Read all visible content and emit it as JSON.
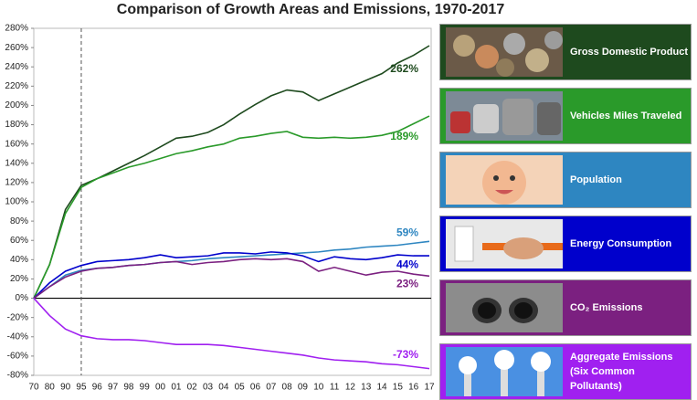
{
  "chart_data": {
    "type": "line",
    "title": "Comparison of Growth Areas and Emissions, 1970-2017",
    "categories": [
      "70",
      "80",
      "90",
      "95",
      "96",
      "97",
      "98",
      "99",
      "00",
      "01",
      "02",
      "03",
      "04",
      "05",
      "06",
      "07",
      "08",
      "09",
      "10",
      "11",
      "12",
      "13",
      "14",
      "15",
      "16",
      "17"
    ],
    "reference_line": "95",
    "ylim": [
      -80,
      280
    ],
    "yticks": [
      {
        "value": -80,
        "label": "-80%"
      },
      {
        "value": -60,
        "label": "-60%"
      },
      {
        "value": -40,
        "label": "-40%"
      },
      {
        "value": -20,
        "label": "-20%"
      },
      {
        "value": 0,
        "label": "0%"
      },
      {
        "value": 20,
        "label": "20%"
      },
      {
        "value": 40,
        "label": "40%"
      },
      {
        "value": 60,
        "label": "60%"
      },
      {
        "value": 80,
        "label": "80%"
      },
      {
        "value": 100,
        "label": "100%"
      },
      {
        "value": 120,
        "label": "120%"
      },
      {
        "value": 140,
        "label": "140%"
      },
      {
        "value": 160,
        "label": "160%"
      },
      {
        "value": 180,
        "label": "180%"
      },
      {
        "value": 200,
        "label": "200%"
      },
      {
        "value": 220,
        "label": "220%"
      },
      {
        "value": 240,
        "label": "240%"
      },
      {
        "value": 260,
        "label": "260%"
      },
      {
        "value": 280,
        "label": "280%"
      }
    ],
    "series": [
      {
        "name": "Gross Domestic Product",
        "color": "#1e4a1e",
        "end_label": "262%",
        "values": [
          0,
          35,
          92,
          117,
          124,
          132,
          140,
          148,
          157,
          166,
          168,
          172,
          180,
          191,
          201,
          210,
          216,
          214,
          205,
          212,
          219,
          226,
          233,
          244,
          252,
          262
        ]
      },
      {
        "name": "Vehicles Miles Traveled",
        "color": "#2a9a2a",
        "end_label": "189%",
        "values": [
          0,
          35,
          88,
          115,
          124,
          130,
          136,
          140,
          145,
          150,
          153,
          157,
          160,
          166,
          168,
          171,
          173,
          167,
          166,
          167,
          166,
          167,
          169,
          173,
          181,
          189
        ]
      },
      {
        "name": "Population",
        "color": "#2e86c1",
        "end_label": "59%",
        "values": [
          0,
          12,
          24,
          29,
          31,
          32,
          34,
          35,
          37,
          38,
          39,
          41,
          42,
          43,
          44,
          45,
          46,
          47,
          48,
          50,
          51,
          53,
          54,
          55,
          57,
          59
        ]
      },
      {
        "name": "Energy Consumption",
        "color": "#0000cc",
        "end_label": "44%",
        "values": [
          0,
          16,
          28,
          34,
          38,
          39,
          40,
          42,
          45,
          42,
          43,
          44,
          47,
          47,
          46,
          48,
          47,
          44,
          38,
          43,
          41,
          40,
          42,
          45,
          44,
          44
        ]
      },
      {
        "name": "CO₂ Emissions",
        "color": "#7b2080",
        "end_label": "23%",
        "values": [
          0,
          12,
          22,
          28,
          31,
          32,
          34,
          35,
          37,
          38,
          35,
          37,
          38,
          40,
          41,
          40,
          41,
          38,
          28,
          32,
          28,
          24,
          27,
          28,
          25,
          23
        ]
      },
      {
        "name": "Aggregate Emissions (Six Common Pollutants)",
        "color": "#a020f0",
        "end_label": "-73%",
        "values": [
          0,
          -18,
          -32,
          -39,
          -42,
          -43,
          -43,
          -44,
          -46,
          -48,
          -48,
          -48,
          -49,
          -51,
          -53,
          -55,
          -57,
          -59,
          -62,
          -64,
          -65,
          -66,
          -68,
          -69,
          -71,
          -73
        ]
      }
    ]
  }
}
